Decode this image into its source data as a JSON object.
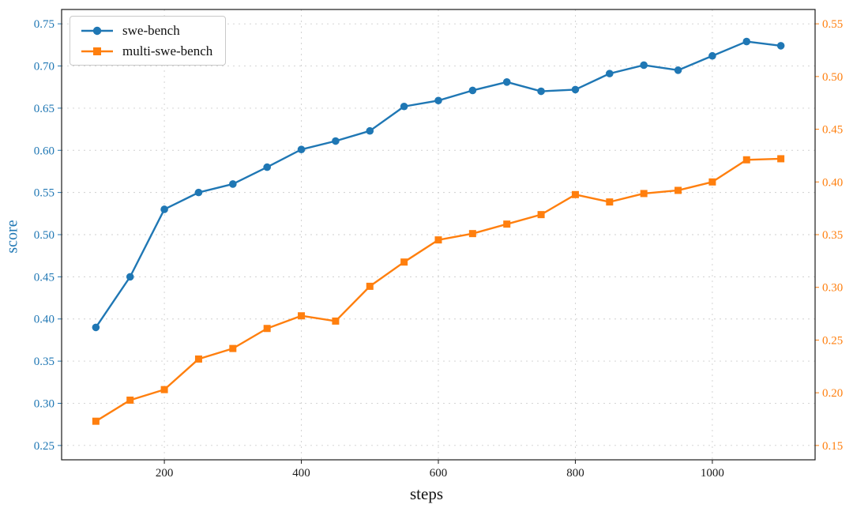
{
  "figure": {
    "background": "#ffffff",
    "spine_color": "#1a1a1a",
    "grid_color": "#cfcfcf",
    "tick_color_bottom": "#1a1a1a"
  },
  "chart_data": {
    "type": "line",
    "title": "",
    "xlabel": "steps",
    "ylabel_left": "score",
    "grid": true,
    "legend_position": "upper-left",
    "xlim": [
      50,
      1150
    ],
    "ylim_left": [
      0.233,
      0.767
    ],
    "ylim_right": [
      0.1364,
      0.5636
    ],
    "x_ticks": [
      200,
      400,
      600,
      800,
      1000
    ],
    "y_ticks_left": [
      0.25,
      0.3,
      0.35,
      0.4,
      0.45,
      0.5,
      0.55,
      0.6,
      0.65,
      0.7,
      0.75
    ],
    "y_ticks_right": [
      0.15,
      0.2,
      0.25,
      0.3,
      0.35,
      0.4,
      0.45,
      0.5,
      0.55
    ],
    "axis_color_left": "#1f77b4",
    "axis_color_right": "#ff7f0e",
    "x": [
      100,
      150,
      200,
      250,
      300,
      350,
      400,
      450,
      500,
      550,
      600,
      650,
      700,
      750,
      800,
      850,
      900,
      950,
      1000,
      1050,
      1100
    ],
    "series": [
      {
        "name": "swe-bench",
        "axis": "left",
        "color": "#1f77b4",
        "marker": "circle",
        "values": [
          0.39,
          0.45,
          0.53,
          0.55,
          0.56,
          0.58,
          0.601,
          0.611,
          0.623,
          0.652,
          0.659,
          0.671,
          0.681,
          0.67,
          0.672,
          0.691,
          0.701,
          0.695,
          0.712,
          0.729,
          0.724
        ]
      },
      {
        "name": "multi-swe-bench",
        "axis": "right",
        "color": "#ff7f0e",
        "marker": "square",
        "values": [
          0.173,
          0.193,
          0.203,
          0.232,
          0.242,
          0.261,
          0.273,
          0.268,
          0.301,
          0.324,
          0.345,
          0.351,
          0.36,
          0.369,
          0.388,
          0.381,
          0.389,
          0.392,
          0.4,
          0.421,
          0.422
        ]
      }
    ]
  }
}
